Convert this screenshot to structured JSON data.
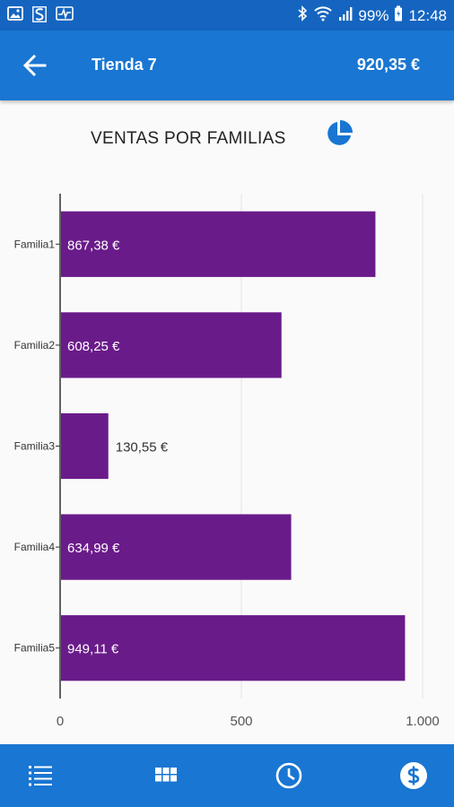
{
  "status_bar": {
    "battery": "99%",
    "time": "12:48"
  },
  "app_bar": {
    "title": "Tienda 7",
    "total": "920,35 €"
  },
  "chart_header": {
    "title": "VENTAS POR FAMILIAS"
  },
  "chart_data": {
    "type": "bar",
    "orientation": "horizontal",
    "title": "VENTAS POR FAMILIAS",
    "categories": [
      "Familia1",
      "Familia2",
      "Familia3",
      "Familia4",
      "Familia5"
    ],
    "values": [
      867.38,
      608.25,
      130.55,
      634.99,
      949.11
    ],
    "data_labels": [
      "867,38 €",
      "608,25 €",
      "130,55 €",
      "634,99 €",
      "949,11 €"
    ],
    "xlim": [
      0,
      1000
    ],
    "x_ticks": [
      0,
      500,
      1000
    ],
    "x_tick_labels": [
      "0",
      "500",
      "1.000"
    ],
    "grid": true,
    "bar_color": "#6a1b8a"
  },
  "colors": {
    "status_bar": "#1565c0",
    "app_bar": "#1976d2",
    "accent": "#1976d2",
    "bar": "#6a1b8a"
  },
  "bottom_nav": {
    "items": [
      {
        "icon": "list-icon"
      },
      {
        "icon": "grid-icon"
      },
      {
        "icon": "clock-icon"
      },
      {
        "icon": "dollar-icon"
      }
    ]
  }
}
